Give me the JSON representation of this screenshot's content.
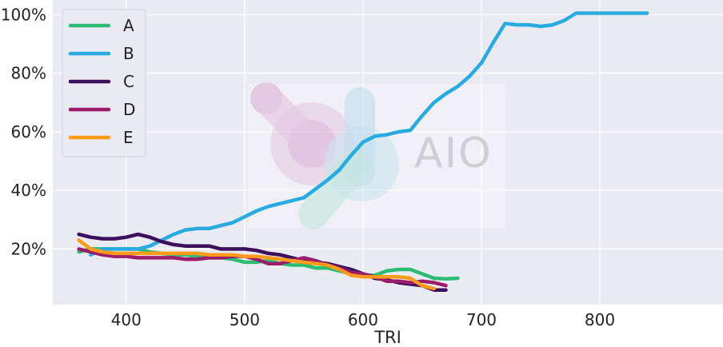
{
  "chart_data": {
    "type": "line",
    "xlabel": "TRI",
    "ylabel": "",
    "xlim": [
      338,
      904
    ],
    "ylim": [
      1,
      105
    ],
    "x_ticks": [
      400,
      500,
      600,
      700,
      800
    ],
    "y_ticks": [
      20,
      40,
      60,
      80,
      100
    ],
    "y_tick_suffix": "%",
    "grid": true,
    "legend_position": "top-left",
    "watermark": "AIO",
    "series": [
      {
        "name": "A",
        "color": "#2dbd72",
        "x": [
          360,
          370,
          380,
          390,
          400,
          410,
          420,
          430,
          440,
          450,
          460,
          470,
          480,
          490,
          500,
          510,
          520,
          530,
          540,
          550,
          560,
          570,
          580,
          590,
          600,
          610,
          620,
          630,
          640,
          650,
          660,
          670,
          680
        ],
        "y": [
          19,
          20,
          20,
          20,
          20,
          20,
          19,
          18.5,
          18,
          18,
          17.5,
          17,
          17,
          16.5,
          15.5,
          15.5,
          16,
          15,
          14.5,
          14.5,
          13.5,
          13.5,
          12.5,
          11.5,
          11,
          11,
          12.5,
          13,
          13,
          11.5,
          10,
          9.8,
          10
        ]
      },
      {
        "name": "B",
        "color": "#29abe2",
        "x": [
          370,
          380,
          390,
          400,
          410,
          420,
          430,
          440,
          450,
          460,
          470,
          480,
          490,
          500,
          510,
          520,
          530,
          540,
          550,
          560,
          570,
          580,
          590,
          600,
          610,
          620,
          630,
          640,
          650,
          660,
          670,
          680,
          690,
          700,
          710,
          720,
          730,
          740,
          750,
          760,
          770,
          780,
          790,
          800,
          810,
          820,
          830,
          840
        ],
        "y": [
          18,
          20,
          20,
          20,
          20,
          21,
          23,
          25,
          26.5,
          27,
          27,
          28,
          29,
          31,
          33,
          34.5,
          35.5,
          36.5,
          37.5,
          40.5,
          43.5,
          47,
          52,
          56.5,
          58.5,
          59,
          60,
          60.5,
          65.5,
          70,
          73,
          75.5,
          79,
          83.5,
          90.5,
          97,
          96.5,
          96.5,
          96,
          96.5,
          98,
          100.5,
          100.5,
          100.5,
          100.5,
          100.5,
          100.5,
          100.5
        ]
      },
      {
        "name": "C",
        "color": "#3b0f5b",
        "x": [
          360,
          370,
          380,
          390,
          400,
          410,
          420,
          430,
          440,
          450,
          460,
          470,
          480,
          490,
          500,
          510,
          520,
          530,
          540,
          550,
          560,
          570,
          580,
          590,
          600,
          610,
          620,
          630,
          640,
          650,
          660,
          670
        ],
        "y": [
          25,
          24,
          23.5,
          23.5,
          24,
          25,
          24,
          22.5,
          21.5,
          21,
          21,
          21,
          20,
          20,
          20,
          19.5,
          18.5,
          18,
          17,
          16,
          15.5,
          15,
          14,
          13,
          11.5,
          10,
          9.5,
          8.5,
          8,
          7.5,
          6,
          6
        ]
      },
      {
        "name": "D",
        "color": "#9c1c6b",
        "x": [
          360,
          370,
          380,
          390,
          400,
          410,
          420,
          430,
          440,
          450,
          460,
          470,
          480,
          490,
          500,
          510,
          520,
          530,
          540,
          550,
          560,
          570,
          580,
          590,
          600,
          610,
          620,
          630,
          640,
          650,
          660,
          670
        ],
        "y": [
          20,
          19,
          18,
          17.5,
          17.5,
          17,
          17,
          17,
          17,
          16.5,
          16.5,
          17,
          17,
          17.5,
          17.5,
          16.5,
          15,
          15,
          16,
          17,
          16,
          14.5,
          13.5,
          12,
          11.5,
          10.5,
          9,
          9,
          8.5,
          9,
          8.5,
          7.5
        ]
      },
      {
        "name": "E",
        "color": "#ff9a1a",
        "x": [
          360,
          370,
          380,
          390,
          400,
          410,
          420,
          430,
          440,
          450,
          460,
          470,
          480,
          490,
          500,
          510,
          520,
          530,
          540,
          550,
          560,
          570,
          580,
          590,
          600,
          610,
          620,
          630,
          640,
          650,
          660
        ],
        "y": [
          23,
          20,
          19,
          18.5,
          18.5,
          18.5,
          18.5,
          18.5,
          18.5,
          18.5,
          18.5,
          18,
          18,
          18,
          17.5,
          17.5,
          17,
          16.5,
          16,
          15.5,
          15,
          14.5,
          13,
          11,
          10.5,
          10.5,
          10.5,
          10.5,
          10,
          7.5,
          6.5
        ]
      }
    ]
  }
}
